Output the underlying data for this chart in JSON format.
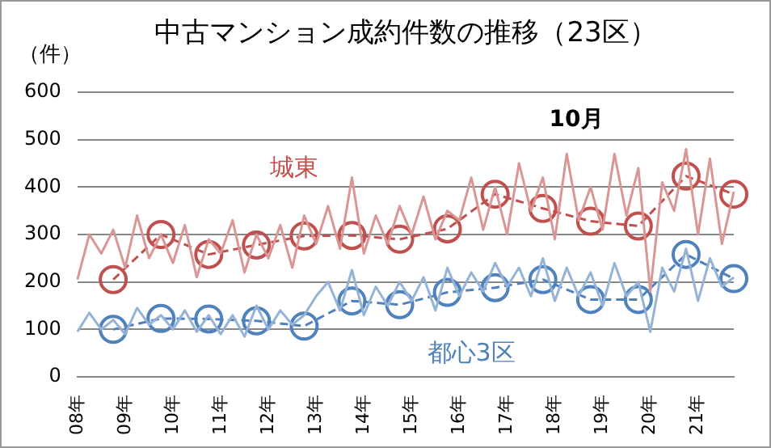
{
  "chart_data": {
    "type": "line",
    "title": "中古マンション成約件数の推移（23区）",
    "ylabel": "（件）",
    "annotations": [
      "10月"
    ],
    "categories": [
      "08年",
      null,
      null,
      null,
      "09年",
      null,
      null,
      null,
      "10年",
      null,
      null,
      null,
      "11年",
      null,
      null,
      null,
      "12年",
      null,
      null,
      null,
      "13年",
      null,
      null,
      null,
      "14年",
      null,
      null,
      null,
      "15年",
      null,
      null,
      null,
      "16年",
      null,
      null,
      null,
      "17年",
      null,
      null,
      null,
      "18年",
      null,
      null,
      null,
      "19年",
      null,
      null,
      null,
      "20年",
      null,
      null,
      null,
      "21年",
      null,
      null,
      null
    ],
    "ylim": [
      0,
      600
    ],
    "yticks": [
      0,
      100,
      200,
      300,
      400,
      500,
      600
    ],
    "grid": "y",
    "legend": false,
    "series": [
      {
        "name": "城東",
        "color": "#d99694",
        "marker": "none",
        "line_style": "solid",
        "values": [
          205,
          300,
          260,
          310,
          230,
          340,
          250,
          300,
          240,
          320,
          210,
          290,
          260,
          330,
          220,
          300,
          250,
          320,
          230,
          340,
          280,
          360,
          270,
          420,
          260,
          340,
          280,
          360,
          300,
          380,
          290,
          350,
          330,
          420,
          310,
          400,
          300,
          450,
          350,
          420,
          290,
          470,
          330,
          400,
          310,
          470,
          340,
          440,
          180,
          410,
          350,
          480,
          300,
          460,
          280,
          390
        ]
      },
      {
        "name": "都心3区",
        "color": "#95b3d7",
        "marker": "none",
        "line_style": "solid",
        "values": [
          95,
          135,
          100,
          120,
          90,
          145,
          110,
          130,
          100,
          140,
          95,
          130,
          90,
          130,
          85,
          150,
          100,
          140,
          110,
          130,
          170,
          200,
          140,
          225,
          130,
          190,
          150,
          200,
          160,
          210,
          140,
          230,
          170,
          220,
          180,
          240,
          190,
          230,
          170,
          250,
          160,
          230,
          170,
          220,
          150,
          240,
          170,
          200,
          95,
          230,
          180,
          270,
          160,
          250,
          190,
          210
        ]
      },
      {
        "color": "#c0504d",
        "marker": "circle",
        "line_style": "dashed",
        "values": [
          null,
          null,
          null,
          205,
          null,
          null,
          null,
          300,
          null,
          null,
          null,
          258,
          null,
          null,
          null,
          278,
          null,
          null,
          null,
          297,
          null,
          null,
          null,
          298,
          null,
          null,
          null,
          290,
          null,
          null,
          null,
          312,
          null,
          null,
          null,
          385,
          null,
          null,
          null,
          355,
          null,
          null,
          null,
          328,
          null,
          null,
          null,
          318,
          null,
          null,
          null,
          423,
          null,
          null,
          null,
          385
        ]
      },
      {
        "color": "#4f81bd",
        "marker": "circle",
        "line_style": "dashed",
        "values": [
          null,
          null,
          null,
          100,
          null,
          null,
          null,
          123,
          null,
          null,
          null,
          122,
          null,
          null,
          null,
          118,
          null,
          null,
          null,
          107,
          null,
          null,
          null,
          160,
          null,
          null,
          null,
          152,
          null,
          null,
          null,
          178,
          null,
          null,
          null,
          188,
          null,
          null,
          null,
          205,
          null,
          null,
          null,
          163,
          null,
          null,
          null,
          163,
          null,
          null,
          null,
          258,
          null,
          null,
          null,
          207
        ]
      }
    ]
  }
}
